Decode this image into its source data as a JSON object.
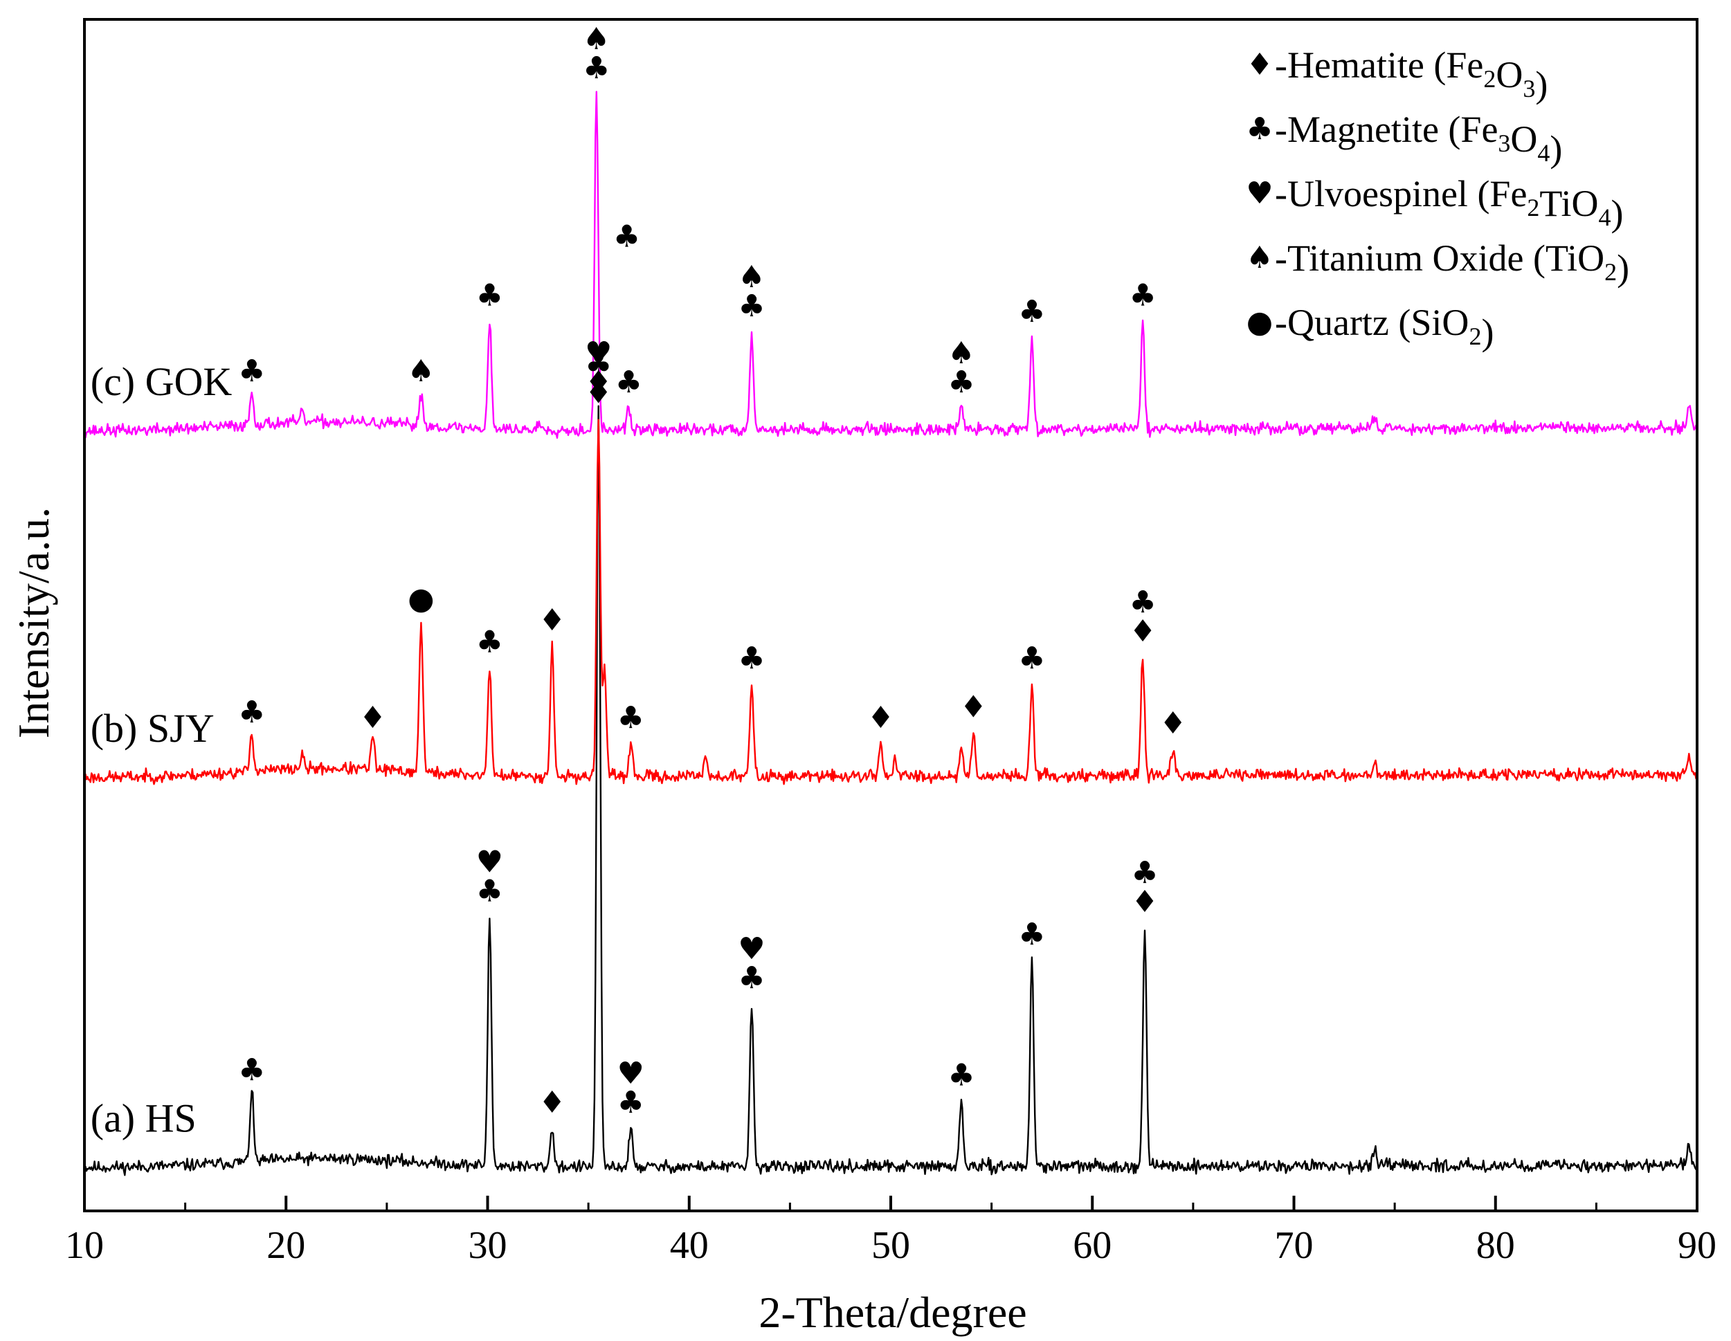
{
  "chart_data": {
    "type": "line",
    "title": "",
    "xlabel": "2-Theta/degree",
    "ylabel": "Intensity/a.u.",
    "xlim": [
      10,
      90
    ],
    "xticks": [
      10,
      20,
      30,
      40,
      50,
      60,
      70,
      80,
      90
    ],
    "yticks_shown": false,
    "legend_position": "top-right",
    "legend": [
      {
        "symbol": "♦",
        "prefix": "-Hematite (",
        "formula": [
          [
            "Fe",
            ""
          ],
          [
            "2",
            "sub"
          ],
          [
            "O",
            ""
          ],
          [
            "3",
            "sub"
          ]
        ],
        "suffix": ")"
      },
      {
        "symbol": "♣",
        "prefix": "-Magnetite (",
        "formula": [
          [
            "Fe",
            ""
          ],
          [
            "3",
            "sub"
          ],
          [
            "O",
            ""
          ],
          [
            "4",
            "sub"
          ]
        ],
        "suffix": ")"
      },
      {
        "symbol": "♥",
        "prefix": "-Ulvoespinel (",
        "formula": [
          [
            "Fe",
            ""
          ],
          [
            "2",
            "sub"
          ],
          [
            "TiO",
            ""
          ],
          [
            "4",
            "sub"
          ]
        ],
        "suffix": ")"
      },
      {
        "symbol": "♠",
        "prefix": "-Titanium Oxide (",
        "formula": [
          [
            "TiO",
            ""
          ],
          [
            "2",
            "sub"
          ]
        ],
        "suffix": ")"
      },
      {
        "symbol": "●",
        "prefix": "-Quartz (",
        "formula": [
          [
            "SiO",
            ""
          ],
          [
            "2",
            "sub"
          ]
        ],
        "suffix": ")"
      }
    ],
    "series": [
      {
        "name": "(a) HS",
        "color": "#000000",
        "baseline_start": 4.0,
        "baseline_end": 4.2,
        "seed": 11,
        "peaks": [
          {
            "x": 18.3,
            "h": 6.5
          },
          {
            "x": 30.1,
            "h": 23
          },
          {
            "x": 33.2,
            "h": 3.5
          },
          {
            "x": 35.5,
            "h": 70
          },
          {
            "x": 37.1,
            "h": 3.5
          },
          {
            "x": 43.1,
            "h": 15
          },
          {
            "x": 53.5,
            "h": 6
          },
          {
            "x": 57.0,
            "h": 19
          },
          {
            "x": 62.6,
            "h": 22
          },
          {
            "x": 74.0,
            "h": 1.5
          },
          {
            "x": 89.6,
            "h": 2
          }
        ],
        "annotations": [
          {
            "x": 18.3,
            "symbols": [
              "♣"
            ]
          },
          {
            "x": 30.1,
            "symbols": [
              "♥",
              "♣"
            ]
          },
          {
            "x": 33.2,
            "symbols": [
              "♦"
            ]
          },
          {
            "x": 35.5,
            "symbols": [
              "♥",
              "♦"
            ]
          },
          {
            "x": 36.9,
            "symbols": [
              "♣"
            ],
            "level": 89
          },
          {
            "x": 37.1,
            "symbols": [
              "♥",
              "♣"
            ]
          },
          {
            "x": 43.1,
            "symbols": [
              "♥",
              "♣"
            ]
          },
          {
            "x": 53.5,
            "symbols": [
              "♣"
            ]
          },
          {
            "x": 57.0,
            "symbols": [
              "♣"
            ]
          },
          {
            "x": 62.6,
            "symbols": [
              "♣",
              "♦"
            ]
          }
        ]
      },
      {
        "name": "(b) SJY",
        "color": "#ff0000",
        "baseline_start": 40.0,
        "baseline_end": 40.3,
        "seed": 23,
        "peaks": [
          {
            "x": 18.3,
            "h": 3.5
          },
          {
            "x": 20.8,
            "h": 1.2
          },
          {
            "x": 24.3,
            "h": 3
          },
          {
            "x": 26.7,
            "h": 14
          },
          {
            "x": 30.1,
            "h": 10
          },
          {
            "x": 33.2,
            "h": 12
          },
          {
            "x": 35.5,
            "h": 33
          },
          {
            "x": 35.8,
            "h": 10
          },
          {
            "x": 37.1,
            "h": 3
          },
          {
            "x": 40.8,
            "h": 2
          },
          {
            "x": 43.1,
            "h": 8.5
          },
          {
            "x": 49.5,
            "h": 3
          },
          {
            "x": 50.2,
            "h": 1.5
          },
          {
            "x": 53.5,
            "h": 2.5
          },
          {
            "x": 54.1,
            "h": 4
          },
          {
            "x": 57.0,
            "h": 8.5
          },
          {
            "x": 62.5,
            "h": 11
          },
          {
            "x": 64.0,
            "h": 2.5
          },
          {
            "x": 74.0,
            "h": 1.5
          },
          {
            "x": 89.6,
            "h": 1.8
          }
        ],
        "annotations": [
          {
            "x": 18.3,
            "symbols": [
              "♣"
            ]
          },
          {
            "x": 24.3,
            "symbols": [
              "♦"
            ]
          },
          {
            "x": 26.7,
            "symbols": [
              "●"
            ]
          },
          {
            "x": 30.1,
            "symbols": [
              "♣"
            ]
          },
          {
            "x": 33.2,
            "symbols": [
              "♦"
            ]
          },
          {
            "x": 35.5,
            "symbols": [
              "♣",
              "♦"
            ]
          },
          {
            "x": 37.1,
            "symbols": [
              "♣"
            ]
          },
          {
            "x": 43.1,
            "symbols": [
              "♣"
            ]
          },
          {
            "x": 49.5,
            "symbols": [
              "♦"
            ]
          },
          {
            "x": 54.1,
            "symbols": [
              "♦"
            ]
          },
          {
            "x": 57.0,
            "symbols": [
              "♣"
            ]
          },
          {
            "x": 62.5,
            "symbols": [
              "♣",
              "♦"
            ]
          },
          {
            "x": 64.0,
            "symbols": [
              "♦"
            ]
          }
        ]
      },
      {
        "name": "(c) GOK",
        "color": "#ff00ff",
        "baseline_start": 72.0,
        "baseline_end": 72.3,
        "seed": 37,
        "peaks": [
          {
            "x": 18.3,
            "h": 3
          },
          {
            "x": 20.8,
            "h": 0.8
          },
          {
            "x": 26.7,
            "h": 3
          },
          {
            "x": 30.1,
            "h": 10
          },
          {
            "x": 32.6,
            "h": 0.6
          },
          {
            "x": 35.4,
            "h": 31
          },
          {
            "x": 37.0,
            "h": 2
          },
          {
            "x": 43.1,
            "h": 9
          },
          {
            "x": 53.5,
            "h": 2
          },
          {
            "x": 57.0,
            "h": 8.5
          },
          {
            "x": 62.5,
            "h": 10
          },
          {
            "x": 74.0,
            "h": 1.3
          },
          {
            "x": 89.6,
            "h": 2
          }
        ],
        "annotations": [
          {
            "x": 18.3,
            "symbols": [
              "♣"
            ]
          },
          {
            "x": 26.7,
            "symbols": [
              "♠"
            ]
          },
          {
            "x": 30.1,
            "symbols": [
              "♣"
            ]
          },
          {
            "x": 35.4,
            "symbols": [
              "♠",
              "♣"
            ]
          },
          {
            "x": 37.0,
            "symbols": [
              "♣"
            ]
          },
          {
            "x": 43.1,
            "symbols": [
              "♠",
              "♣"
            ]
          },
          {
            "x": 53.5,
            "symbols": [
              "♠",
              "♣"
            ]
          },
          {
            "x": 57.0,
            "symbols": [
              "♣"
            ]
          },
          {
            "x": 62.5,
            "symbols": [
              "♣"
            ]
          }
        ]
      }
    ],
    "ylim": [
      0,
      110
    ]
  }
}
